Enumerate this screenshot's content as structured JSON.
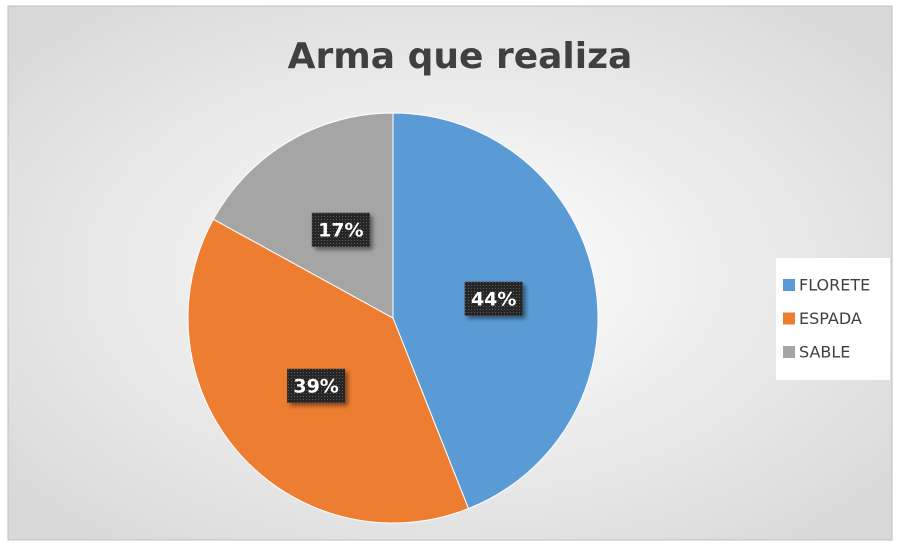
{
  "chart_data": {
    "type": "pie",
    "title": "Arma que realiza",
    "categories": [
      "FLORETE",
      "ESPADA",
      "SABLE"
    ],
    "values": [
      44,
      39,
      17
    ],
    "value_labels": [
      "44%",
      "39%",
      "17%"
    ],
    "colors": [
      "#5b9bd5",
      "#ed7d31",
      "#a5a5a5"
    ],
    "legend": "right"
  }
}
